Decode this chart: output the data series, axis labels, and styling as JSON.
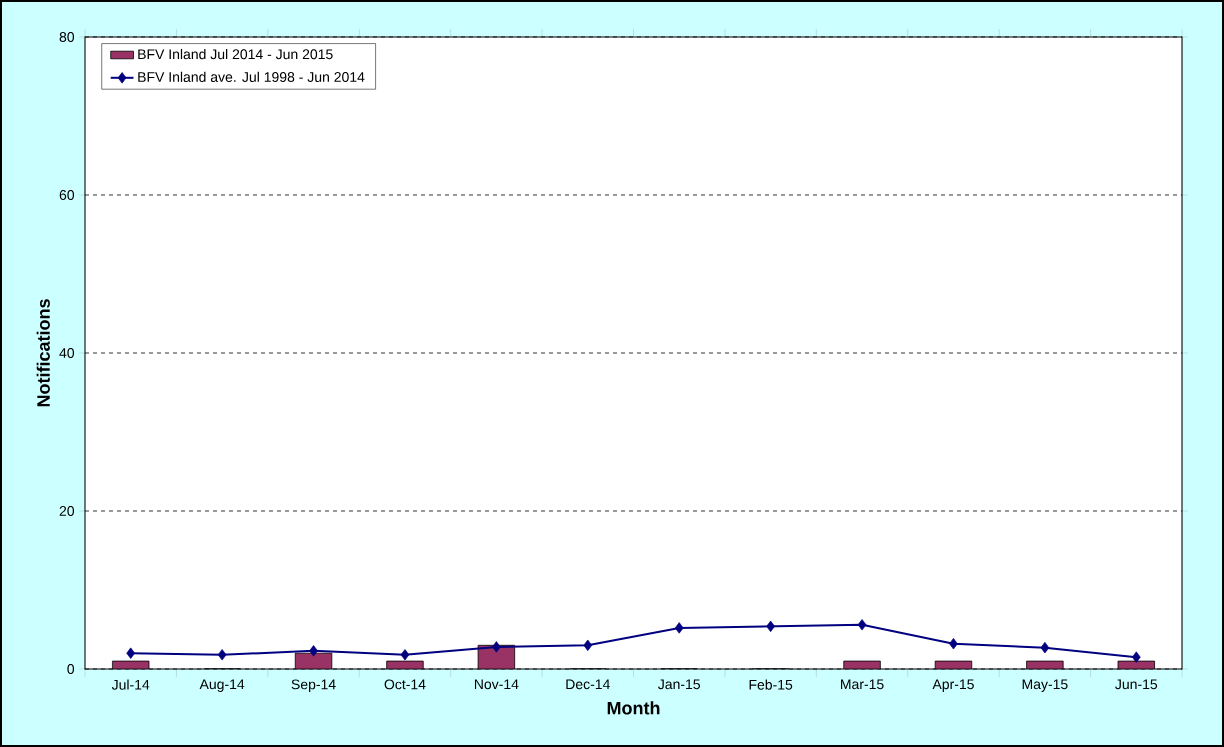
{
  "chart_data": {
    "type": "bar",
    "xlabel": "Month",
    "ylabel": "Notifications",
    "categories": [
      "Jul-14",
      "Aug-14",
      "Sep-14",
      "Oct-14",
      "Nov-14",
      "Dec-14",
      "Jan-15",
      "Feb-15",
      "Mar-15",
      "Apr-15",
      "May-15",
      "Jun-15"
    ],
    "series": [
      {
        "name": "BFV Inland Jul 2014 - Jun 2015",
        "color": "#993366",
        "values": [
          1,
          0,
          2,
          1,
          3,
          0,
          0,
          0,
          1,
          1,
          1,
          1
        ]
      },
      {
        "name": "BFV Inland ave. Jul 1998 - Jun 2014",
        "type": "line",
        "color": "#000080",
        "values": [
          2.0,
          1.8,
          2.3,
          1.8,
          2.8,
          3.0,
          5.2,
          5.4,
          5.6,
          3.2,
          2.7,
          1.5
        ]
      }
    ],
    "ylim": [
      0,
      80
    ],
    "yticks": [
      0,
      20,
      40,
      60,
      80
    ],
    "grid": "y",
    "legend": "top left",
    "marker": "diamond"
  }
}
